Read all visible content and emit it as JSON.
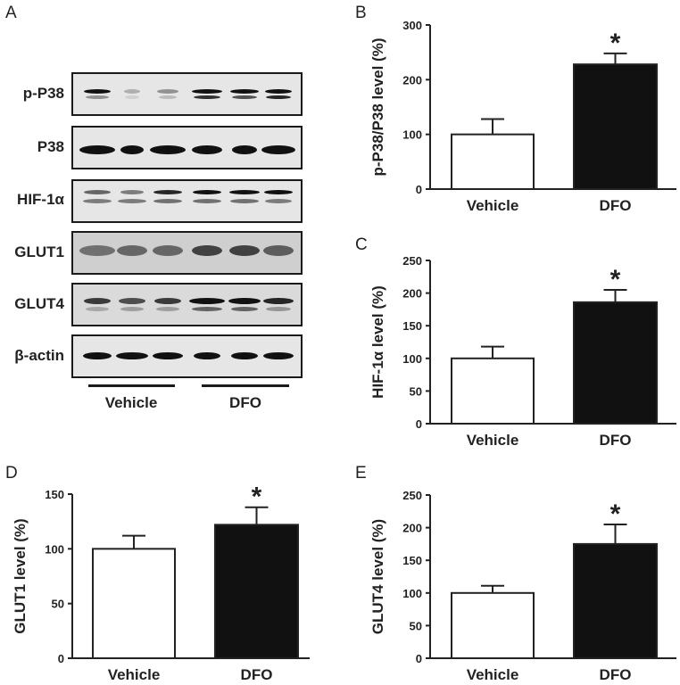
{
  "panels": {
    "A": {
      "letter": "A",
      "rows": [
        {
          "label": "p-P38"
        },
        {
          "label": "P38"
        },
        {
          "label": "HIF-1α"
        },
        {
          "label": "GLUT1"
        },
        {
          "label": "GLUT4"
        },
        {
          "label": "β-actin"
        }
      ],
      "groups": [
        {
          "label": "Vehicle"
        },
        {
          "label": "DFO"
        }
      ]
    },
    "B": {
      "letter": "B"
    },
    "C": {
      "letter": "C"
    },
    "D": {
      "letter": "D"
    },
    "E": {
      "letter": "E"
    }
  },
  "chart_data": [
    {
      "panel": "B",
      "type": "bar",
      "title": "",
      "xlabel": "",
      "ylabel": "p-P38/P38 level (%)",
      "categories": [
        "Vehicle",
        "DFO"
      ],
      "values": [
        100,
        228
      ],
      "error_upper": [
        28,
        20
      ],
      "bar_colors": [
        "#ffffff",
        "#111111"
      ],
      "significance": [
        "",
        "*"
      ],
      "ylim": [
        0,
        300
      ],
      "yticks": [
        0,
        100,
        200,
        300
      ],
      "grid": false,
      "legend": "none"
    },
    {
      "panel": "C",
      "type": "bar",
      "title": "",
      "xlabel": "",
      "ylabel": "HIF-1α level (%)",
      "categories": [
        "Vehicle",
        "DFO"
      ],
      "values": [
        100,
        186
      ],
      "error_upper": [
        18,
        19
      ],
      "bar_colors": [
        "#ffffff",
        "#111111"
      ],
      "significance": [
        "",
        "*"
      ],
      "ylim": [
        0,
        250
      ],
      "yticks": [
        0,
        50,
        100,
        150,
        200,
        250
      ],
      "grid": false,
      "legend": "none"
    },
    {
      "panel": "D",
      "type": "bar",
      "title": "",
      "xlabel": "",
      "ylabel": "GLUT1 level (%)",
      "categories": [
        "Vehicle",
        "DFO"
      ],
      "values": [
        100,
        122
      ],
      "error_upper": [
        12,
        16
      ],
      "bar_colors": [
        "#ffffff",
        "#111111"
      ],
      "significance": [
        "",
        "*"
      ],
      "ylim": [
        0,
        150
      ],
      "yticks": [
        0,
        50,
        100,
        150
      ],
      "grid": false,
      "legend": "none"
    },
    {
      "panel": "E",
      "type": "bar",
      "title": "",
      "xlabel": "",
      "ylabel": "GLUT4 level (%)",
      "categories": [
        "Vehicle",
        "DFO"
      ],
      "values": [
        100,
        175
      ],
      "error_upper": [
        11,
        30
      ],
      "bar_colors": [
        "#ffffff",
        "#111111"
      ],
      "significance": [
        "",
        "*"
      ],
      "ylim": [
        0,
        250
      ],
      "yticks": [
        0,
        50,
        100,
        150,
        200,
        250
      ],
      "grid": false,
      "legend": "none"
    }
  ]
}
